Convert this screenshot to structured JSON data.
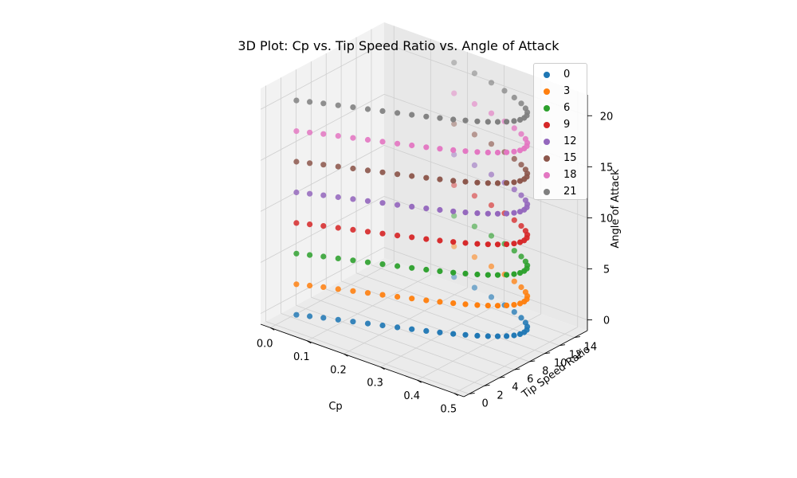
{
  "chart_data": {
    "type": "scatter3d",
    "title": "3D Plot: Cp vs. Tip Speed Ratio vs. Angle of Attack",
    "xlabel": "Cp",
    "ylabel": "Tip Speed Ratio",
    "zlabel": "Angle of Attack",
    "xlim": [
      0.0,
      0.5
    ],
    "ylim": [
      0,
      15
    ],
    "zlim": [
      0,
      21
    ],
    "x_ticks": [
      "0.0",
      "0.1",
      "0.2",
      "0.3",
      "0.4",
      "0.5"
    ],
    "y_ticks": [
      "0",
      "2",
      "4",
      "6",
      "8",
      "10",
      "12",
      "14"
    ],
    "z_ticks": [
      "0",
      "5",
      "10",
      "15",
      "20"
    ],
    "legend_position": "top-right",
    "grid": true,
    "tsr": [
      1,
      1.5,
      2,
      2.5,
      3,
      3.5,
      4,
      4.5,
      5,
      5.5,
      6,
      6.5,
      7,
      7.5,
      8,
      8.5,
      9,
      9.5,
      10,
      10.5,
      11,
      11.5,
      12,
      12.5,
      13,
      13.5,
      14,
      14.5,
      15
    ],
    "cp": [
      0.036,
      0.062,
      0.089,
      0.119,
      0.149,
      0.179,
      0.209,
      0.239,
      0.268,
      0.297,
      0.324,
      0.35,
      0.373,
      0.395,
      0.414,
      0.43,
      0.444,
      0.454,
      0.46,
      0.461,
      0.458,
      0.449,
      0.434,
      0.412,
      0.383,
      0.346,
      0.3,
      0.244,
      0.178
    ],
    "series": [
      {
        "name": "0",
        "angle": 0,
        "color": "#1f77b4"
      },
      {
        "name": "3",
        "angle": 3,
        "color": "#ff7f0e"
      },
      {
        "name": "6",
        "angle": 6,
        "color": "#2ca02c"
      },
      {
        "name": "9",
        "angle": 9,
        "color": "#d62728"
      },
      {
        "name": "12",
        "angle": 12,
        "color": "#9467bd"
      },
      {
        "name": "15",
        "angle": 15,
        "color": "#8c564b"
      },
      {
        "name": "18",
        "angle": 18,
        "color": "#e377c2"
      },
      {
        "name": "21",
        "angle": 21,
        "color": "#7f7f7f"
      }
    ]
  }
}
